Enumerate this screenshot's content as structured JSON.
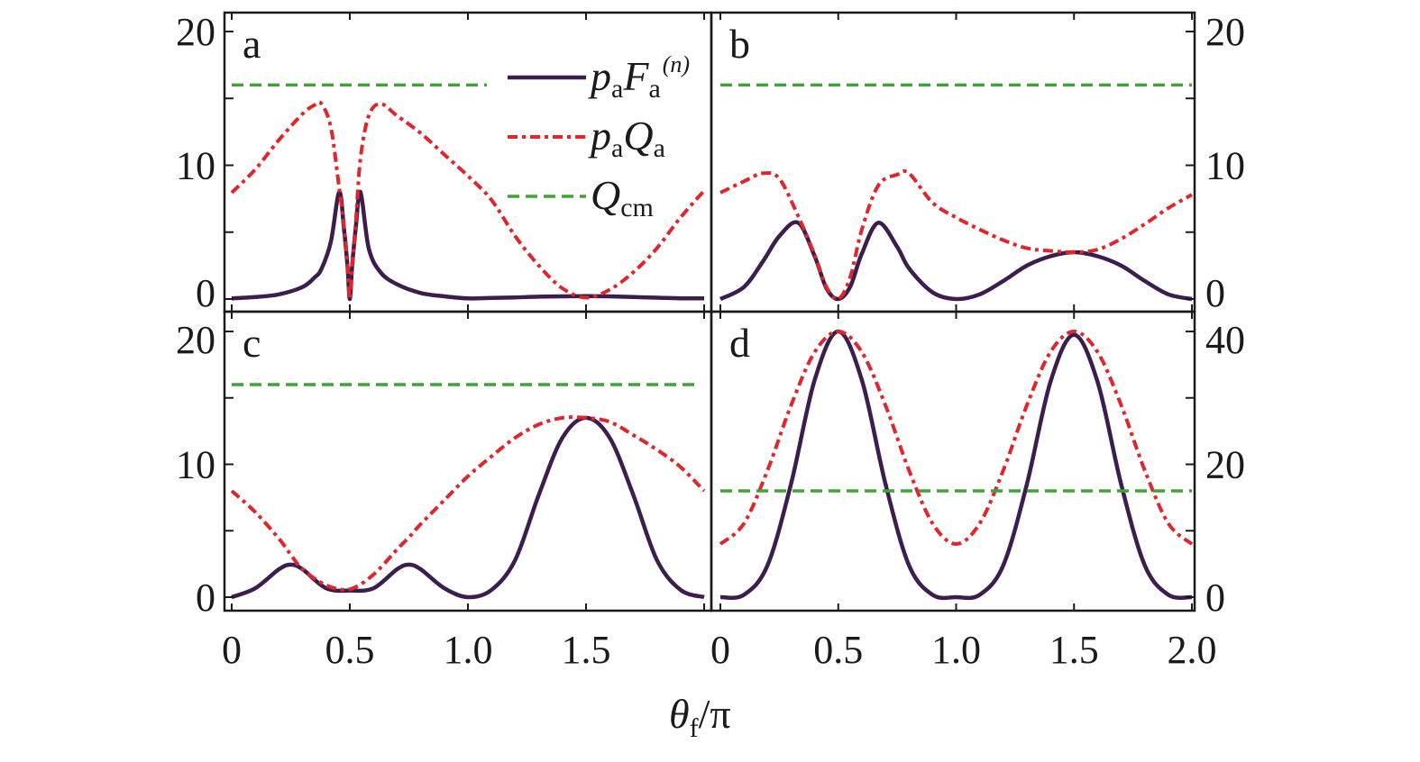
{
  "chart_data": [
    {
      "type": "line",
      "panel_label": "a",
      "y_axis_side": "left",
      "xlim": [
        0,
        2
      ],
      "ylim": [
        -1,
        21.4
      ],
      "yticks": [
        0,
        10,
        20
      ],
      "yminor": [
        5,
        15
      ],
      "xticks": [
        0,
        0.5,
        1.0,
        1.5,
        2.0
      ],
      "xtick_labels": [],
      "series": [
        {
          "key": "F",
          "x": [
            0,
            0.1,
            0.2,
            0.3,
            0.35,
            0.38,
            0.42,
            0.455,
            0.475,
            0.49,
            0.5,
            0.51,
            0.525,
            0.545,
            0.58,
            0.63,
            0.7,
            0.8,
            0.9,
            1.0,
            1.1,
            1.2,
            1.3,
            1.4,
            1.5,
            1.6,
            1.7,
            1.8,
            1.9,
            2.0
          ],
          "y": [
            0.05,
            0.15,
            0.35,
            0.9,
            1.6,
            2.25,
            4.3,
            8.0,
            5.3,
            2.5,
            0,
            2.5,
            5.3,
            8.0,
            3.8,
            2.0,
            1.1,
            0.45,
            0.2,
            0.05,
            0.08,
            0.12,
            0.18,
            0.2,
            0.22,
            0.2,
            0.15,
            0.1,
            0.05,
            0.05
          ]
        },
        {
          "key": "Q",
          "x": [
            0,
            0.1,
            0.2,
            0.3,
            0.35,
            0.38,
            0.42,
            0.455,
            0.475,
            0.49,
            0.5,
            0.51,
            0.525,
            0.545,
            0.58,
            0.63,
            0.7,
            0.8,
            0.9,
            1.0,
            1.1,
            1.2,
            1.3,
            1.4,
            1.5,
            1.6,
            1.7,
            1.8,
            1.9,
            2.0
          ],
          "y": [
            7.95,
            9.7,
            11.9,
            13.85,
            14.5,
            14.6,
            12.8,
            8.3,
            5.5,
            2.6,
            0,
            2.6,
            5.7,
            10.5,
            13.7,
            14.6,
            13.7,
            12.4,
            10.8,
            9.2,
            7.4,
            4.7,
            2.5,
            0.8,
            0.1,
            0.7,
            2.0,
            3.8,
            6.1,
            8.1
          ]
        },
        {
          "key": "Qcm",
          "x": [
            0,
            1.08
          ],
          "y": [
            16,
            16
          ]
        }
      ],
      "legend": {
        "placement": "top-right",
        "entries": [
          {
            "key": "F",
            "main1": "p",
            "sub1": "a",
            "main2": "F",
            "sub2": "a",
            "sup2": "(n)"
          },
          {
            "key": "Q",
            "main1": "p",
            "sub1": "a",
            "main2": "Q",
            "sub2": "a",
            "sup2": ""
          },
          {
            "key": "Qcm",
            "main1": "Q",
            "sub1": "cm",
            "main2": "",
            "sub2": "",
            "sup2": ""
          }
        ]
      }
    },
    {
      "type": "line",
      "panel_label": "b",
      "y_axis_side": "right",
      "xlim": [
        0,
        2
      ],
      "ylim": [
        -1,
        21.4
      ],
      "yticks": [
        0,
        10,
        20
      ],
      "yminor": [
        5,
        15
      ],
      "xticks": [
        0,
        0.5,
        1.0,
        1.5,
        2.0
      ],
      "xtick_labels": [],
      "series": [
        {
          "key": "F",
          "x": [
            0,
            0.1,
            0.18,
            0.25,
            0.33,
            0.4,
            0.45,
            0.5,
            0.55,
            0.6,
            0.67,
            0.75,
            0.8,
            0.9,
            1.0,
            1.1,
            1.2,
            1.3,
            1.4,
            1.5,
            1.6,
            1.7,
            1.8,
            1.9,
            2.0
          ],
          "y": [
            0,
            0.9,
            2.8,
            4.7,
            5.7,
            3.2,
            0.8,
            0,
            0.9,
            3.4,
            5.7,
            3.9,
            2.3,
            0.5,
            0,
            0.35,
            1.35,
            2.5,
            3.2,
            3.5,
            3.2,
            2.5,
            1.35,
            0.35,
            0
          ]
        },
        {
          "key": "Q",
          "x": [
            0,
            0.1,
            0.18,
            0.25,
            0.33,
            0.4,
            0.45,
            0.5,
            0.55,
            0.6,
            0.67,
            0.75,
            0.8,
            0.9,
            1.0,
            1.1,
            1.2,
            1.3,
            1.4,
            1.5,
            1.6,
            1.7,
            1.8,
            1.9,
            2.0
          ],
          "y": [
            7.95,
            8.8,
            9.4,
            9.0,
            6.2,
            3.3,
            0.9,
            0,
            1.6,
            5.2,
            8.5,
            9.3,
            9.4,
            7.2,
            6.1,
            5.2,
            4.4,
            3.8,
            3.6,
            3.5,
            3.7,
            4.5,
            5.6,
            6.8,
            7.8
          ]
        },
        {
          "key": "Qcm",
          "x": [
            0,
            2
          ],
          "y": [
            16,
            16
          ]
        }
      ]
    },
    {
      "type": "line",
      "panel_label": "c",
      "y_axis_side": "left",
      "xlim": [
        0,
        2
      ],
      "ylim": [
        -1,
        21.5
      ],
      "yticks": [
        0,
        10,
        20
      ],
      "yminor": [
        5,
        15
      ],
      "xticks": [
        0,
        0.5,
        1.0,
        1.5,
        2.0
      ],
      "xtick_labels": [
        "0",
        "0.5",
        "1.0",
        "1.5"
      ],
      "series": [
        {
          "key": "F",
          "x": [
            0,
            0.1,
            0.2,
            0.25,
            0.3,
            0.4,
            0.5,
            0.6,
            0.7,
            0.75,
            0.8,
            0.9,
            1.0,
            1.1,
            1.2,
            1.3,
            1.4,
            1.5,
            1.6,
            1.7,
            1.8,
            1.9,
            2.0
          ],
          "y": [
            0,
            0.67,
            2.1,
            2.45,
            2.1,
            0.67,
            0.5,
            0.67,
            2.1,
            2.45,
            2.1,
            0.67,
            0,
            0.55,
            2.8,
            7.7,
            12.0,
            13.5,
            12.0,
            7.7,
            2.8,
            0.55,
            0
          ]
        },
        {
          "key": "Q",
          "x": [
            0,
            0.1,
            0.2,
            0.25,
            0.3,
            0.4,
            0.5,
            0.6,
            0.7,
            0.75,
            0.8,
            0.9,
            1.0,
            1.1,
            1.2,
            1.3,
            1.4,
            1.5,
            1.6,
            1.7,
            1.8,
            1.9,
            2.0
          ],
          "y": [
            8.0,
            6.4,
            4.4,
            3.2,
            2.1,
            0.9,
            0.6,
            1.7,
            3.6,
            4.5,
            5.5,
            7.3,
            9.1,
            10.6,
            12.0,
            13.0,
            13.5,
            13.5,
            13.2,
            12.2,
            11.1,
            9.8,
            8.0
          ]
        },
        {
          "key": "Qcm",
          "x": [
            0,
            1.98
          ],
          "y": [
            16,
            16
          ]
        }
      ]
    },
    {
      "type": "line",
      "panel_label": "d",
      "y_axis_side": "right",
      "xlim": [
        0,
        2
      ],
      "ylim": [
        -2,
        43
      ],
      "yticks": [
        0,
        20,
        40
      ],
      "yminor": [
        10,
        30
      ],
      "xticks": [
        0,
        0.5,
        1.0,
        1.5,
        2.0
      ],
      "xtick_labels": [
        "0",
        "0.5",
        "1.0",
        "1.5",
        "2.0"
      ],
      "series": [
        {
          "key": "F",
          "x": [
            0,
            0.1,
            0.2,
            0.3,
            0.4,
            0.5,
            0.6,
            0.7,
            0.8,
            0.9,
            1.0,
            1.1,
            1.2,
            1.3,
            1.4,
            1.5,
            1.6,
            1.7,
            1.8,
            1.9,
            2.0
          ],
          "y": [
            0,
            0.36,
            4.8,
            17.1,
            32.7,
            40,
            32.7,
            17.1,
            4.8,
            0.36,
            0,
            0.36,
            4.8,
            17.0,
            32.4,
            39.5,
            32.4,
            17.0,
            4.8,
            0.36,
            0
          ]
        },
        {
          "key": "Q",
          "x": [
            0,
            0.1,
            0.2,
            0.3,
            0.4,
            0.5,
            0.6,
            0.7,
            0.8,
            0.9,
            1.0,
            1.1,
            1.2,
            1.3,
            1.4,
            1.5,
            1.6,
            1.7,
            1.8,
            1.9,
            2.0
          ],
          "y": [
            8,
            11.1,
            19.1,
            28.9,
            36.9,
            40,
            36.9,
            28.9,
            19.1,
            11.1,
            8,
            11.1,
            19.1,
            28.9,
            36.9,
            40,
            36.9,
            28.9,
            19.1,
            11.1,
            8
          ]
        },
        {
          "key": "Qcm",
          "x": [
            0,
            2
          ],
          "y": [
            16,
            16
          ]
        }
      ]
    }
  ],
  "xlabel": {
    "main": "θ",
    "sub": "f",
    "rest": "/π"
  },
  "colors": {
    "F": "#3b1d4e",
    "Q": "#e0262b",
    "Qcm": "#3ea534",
    "axis": "#1a1a1a"
  }
}
